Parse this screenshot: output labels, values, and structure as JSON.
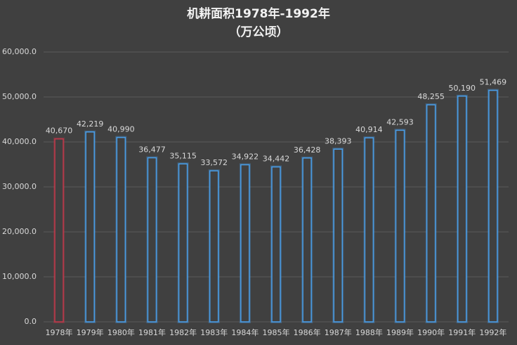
{
  "chart_data": {
    "type": "bar",
    "title": "机耕面积1978年-1992年",
    "subtitle": "（万公顷）",
    "categories": [
      "1978年",
      "1979年",
      "1980年",
      "1981年",
      "1982年",
      "1983年",
      "1984年",
      "1985年",
      "1986年",
      "1987年",
      "1988年",
      "1989年",
      "1990年",
      "1991年",
      "1992年"
    ],
    "values": [
      40670,
      42219,
      40990,
      36477,
      35115,
      33572,
      34922,
      34442,
      36428,
      38393,
      40914,
      42593,
      48255,
      50190,
      51469
    ],
    "value_labels": [
      "40,670",
      "42,219",
      "40,990",
      "36,477",
      "35,115",
      "33,572",
      "34,922",
      "34,442",
      "36,428",
      "38,393",
      "40,914",
      "42,593",
      "48,255",
      "50,190",
      "51,469"
    ],
    "colors": [
      "#c0394b",
      "#4a9ee8",
      "#4a9ee8",
      "#4a9ee8",
      "#4a9ee8",
      "#4a9ee8",
      "#4a9ee8",
      "#4a9ee8",
      "#4a9ee8",
      "#4a9ee8",
      "#4a9ee8",
      "#4a9ee8",
      "#4a9ee8",
      "#4a9ee8",
      "#4a9ee8"
    ],
    "ylim": [
      0,
      60000
    ],
    "yticks": [
      {
        "value": 0,
        "label": "0.0"
      },
      {
        "value": 10000,
        "label": "10,000.0"
      },
      {
        "value": 20000,
        "label": "20,000.0"
      },
      {
        "value": 30000,
        "label": "30,000.0"
      },
      {
        "value": 40000,
        "label": "40,000.0"
      },
      {
        "value": 50000,
        "label": "50,000.0"
      },
      {
        "value": 60000,
        "label": "60,000.0"
      }
    ],
    "grid": true
  }
}
